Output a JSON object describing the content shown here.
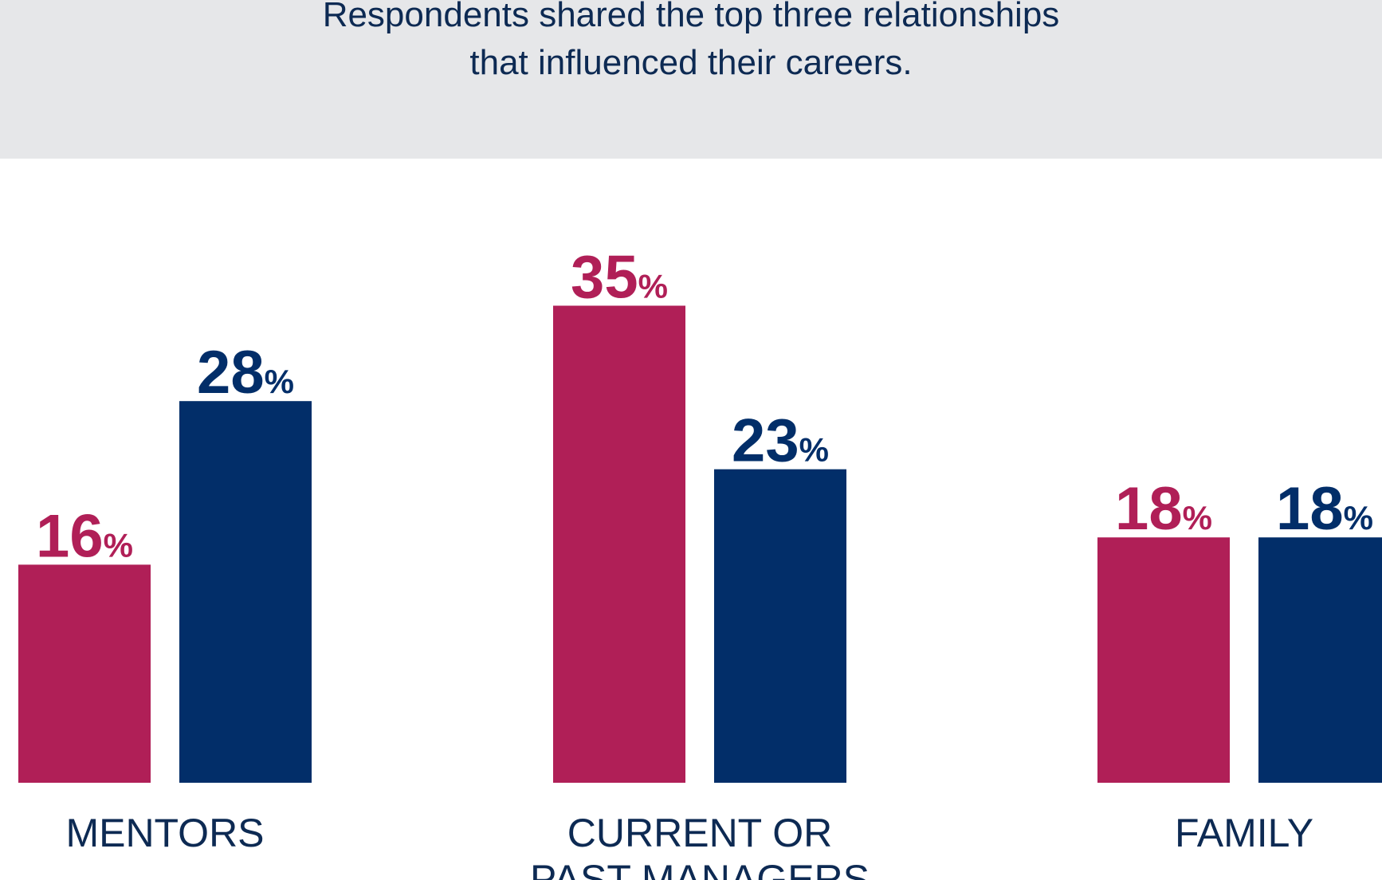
{
  "header": {
    "subtitle_line_1": "Respondents shared the top three relationships",
    "subtitle_line_2": "that influenced their careers."
  },
  "colors": {
    "series_a": "#b01f57",
    "series_b": "#022e69",
    "header_background": "#e6e7e9",
    "text": "#0d2a53"
  },
  "chart_data": {
    "type": "bar",
    "categories": [
      [
        "MENTORS"
      ],
      [
        "CURRENT OR",
        "PAST MANAGERS"
      ],
      [
        "FAMILY"
      ]
    ],
    "series": [
      {
        "values": [
          16,
          35,
          18
        ],
        "color": "#b01f57"
      },
      {
        "values": [
          28,
          23,
          18
        ],
        "color": "#022e69"
      }
    ],
    "value_suffix": "%",
    "ylim": [
      0,
      35
    ],
    "grid": false,
    "title": "",
    "xlabel": "",
    "ylabel": ""
  }
}
